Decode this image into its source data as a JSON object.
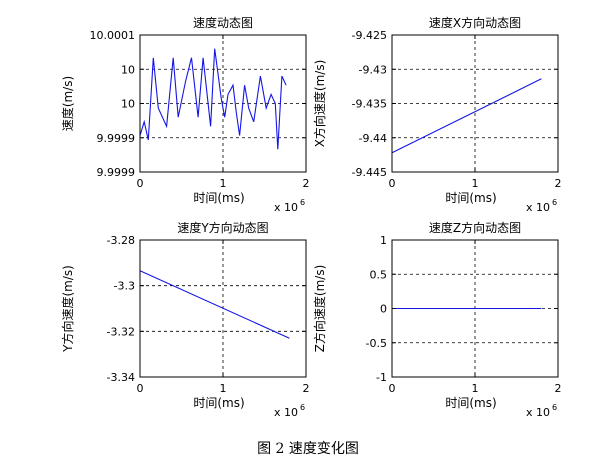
{
  "caption": "图 2  速度变化图",
  "chart_data": [
    {
      "type": "line",
      "title": "速度动态图",
      "xlabel": "时间(ms)",
      "ylabel": "速度(m/s)",
      "x_multiplier": "x 10",
      "x_exponent": "6",
      "x_ticks": [
        "0",
        "1",
        "2"
      ],
      "y_ticks": [
        "10.0001",
        "10",
        "10",
        "9.9999",
        "9.9999"
      ],
      "xlim": [
        0,
        2
      ],
      "ylim": [
        9.99985,
        10.00015
      ],
      "grid": true,
      "color": "#1515e6",
      "x": [
        0.0,
        0.05,
        0.1,
        0.16,
        0.22,
        0.32,
        0.4,
        0.46,
        0.55,
        0.62,
        0.7,
        0.76,
        0.85,
        0.9,
        0.98,
        1.02,
        1.06,
        1.12,
        1.16,
        1.2,
        1.26,
        1.31,
        1.37,
        1.45,
        1.52,
        1.58,
        1.63,
        1.66,
        1.71,
        1.76
      ],
      "y": [
        9.99993,
        9.99996,
        9.99992,
        10.0001,
        9.99999,
        9.99995,
        10.0001,
        9.99997,
        10.00005,
        10.0001,
        9.99997,
        10.0001,
        9.99995,
        10.00012,
        10.00001,
        9.99997,
        10.00002,
        10.00004,
        9.99998,
        9.99993,
        10.00004,
        9.99999,
        9.99996,
        10.00006,
        9.99999,
        10.00002,
        10.0,
        9.9999,
        10.00006,
        10.00004
      ]
    },
    {
      "type": "line",
      "title": "速度X方向动态图",
      "xlabel": "时间(ms)",
      "ylabel": "X方向速度(m/s)",
      "x_multiplier": "x 10",
      "x_exponent": "6",
      "x_ticks": [
        "0",
        "1",
        "2"
      ],
      "y_ticks": [
        "-9.425",
        "-9.43",
        "-9.435",
        "-9.44",
        "-9.445"
      ],
      "xlim": [
        0,
        2
      ],
      "ylim": [
        -9.445,
        -9.425
      ],
      "grid": true,
      "color": "#1515e6",
      "x": [
        0,
        1.8
      ],
      "y": [
        -9.4422,
        -9.4314
      ]
    },
    {
      "type": "line",
      "title": "速度Y方向动态图",
      "xlabel": "时间(ms)",
      "ylabel": "Y方向速度(m/s)",
      "x_multiplier": "x 10",
      "x_exponent": "6",
      "x_ticks": [
        "0",
        "1",
        "2"
      ],
      "y_ticks": [
        "-3.28",
        "-3.3",
        "-3.32",
        "-3.34"
      ],
      "xlim": [
        0,
        2
      ],
      "ylim": [
        -3.34,
        -3.28
      ],
      "grid": true,
      "color": "#1515e6",
      "x": [
        0,
        1.8
      ],
      "y": [
        -3.2935,
        -3.323
      ]
    },
    {
      "type": "line",
      "title": "速度Z方向动态图",
      "xlabel": "时间(ms)",
      "ylabel": "Z方向速度(m/s)",
      "x_multiplier": "x 10",
      "x_exponent": "6",
      "x_ticks": [
        "0",
        "1",
        "2"
      ],
      "y_ticks": [
        "1",
        "0.5",
        "0",
        "-0.5",
        "-1"
      ],
      "xlim": [
        0,
        2
      ],
      "ylim": [
        -1,
        1
      ],
      "grid": true,
      "color": "#1515e6",
      "x": [
        0,
        1.8
      ],
      "y": [
        0,
        0
      ]
    }
  ]
}
